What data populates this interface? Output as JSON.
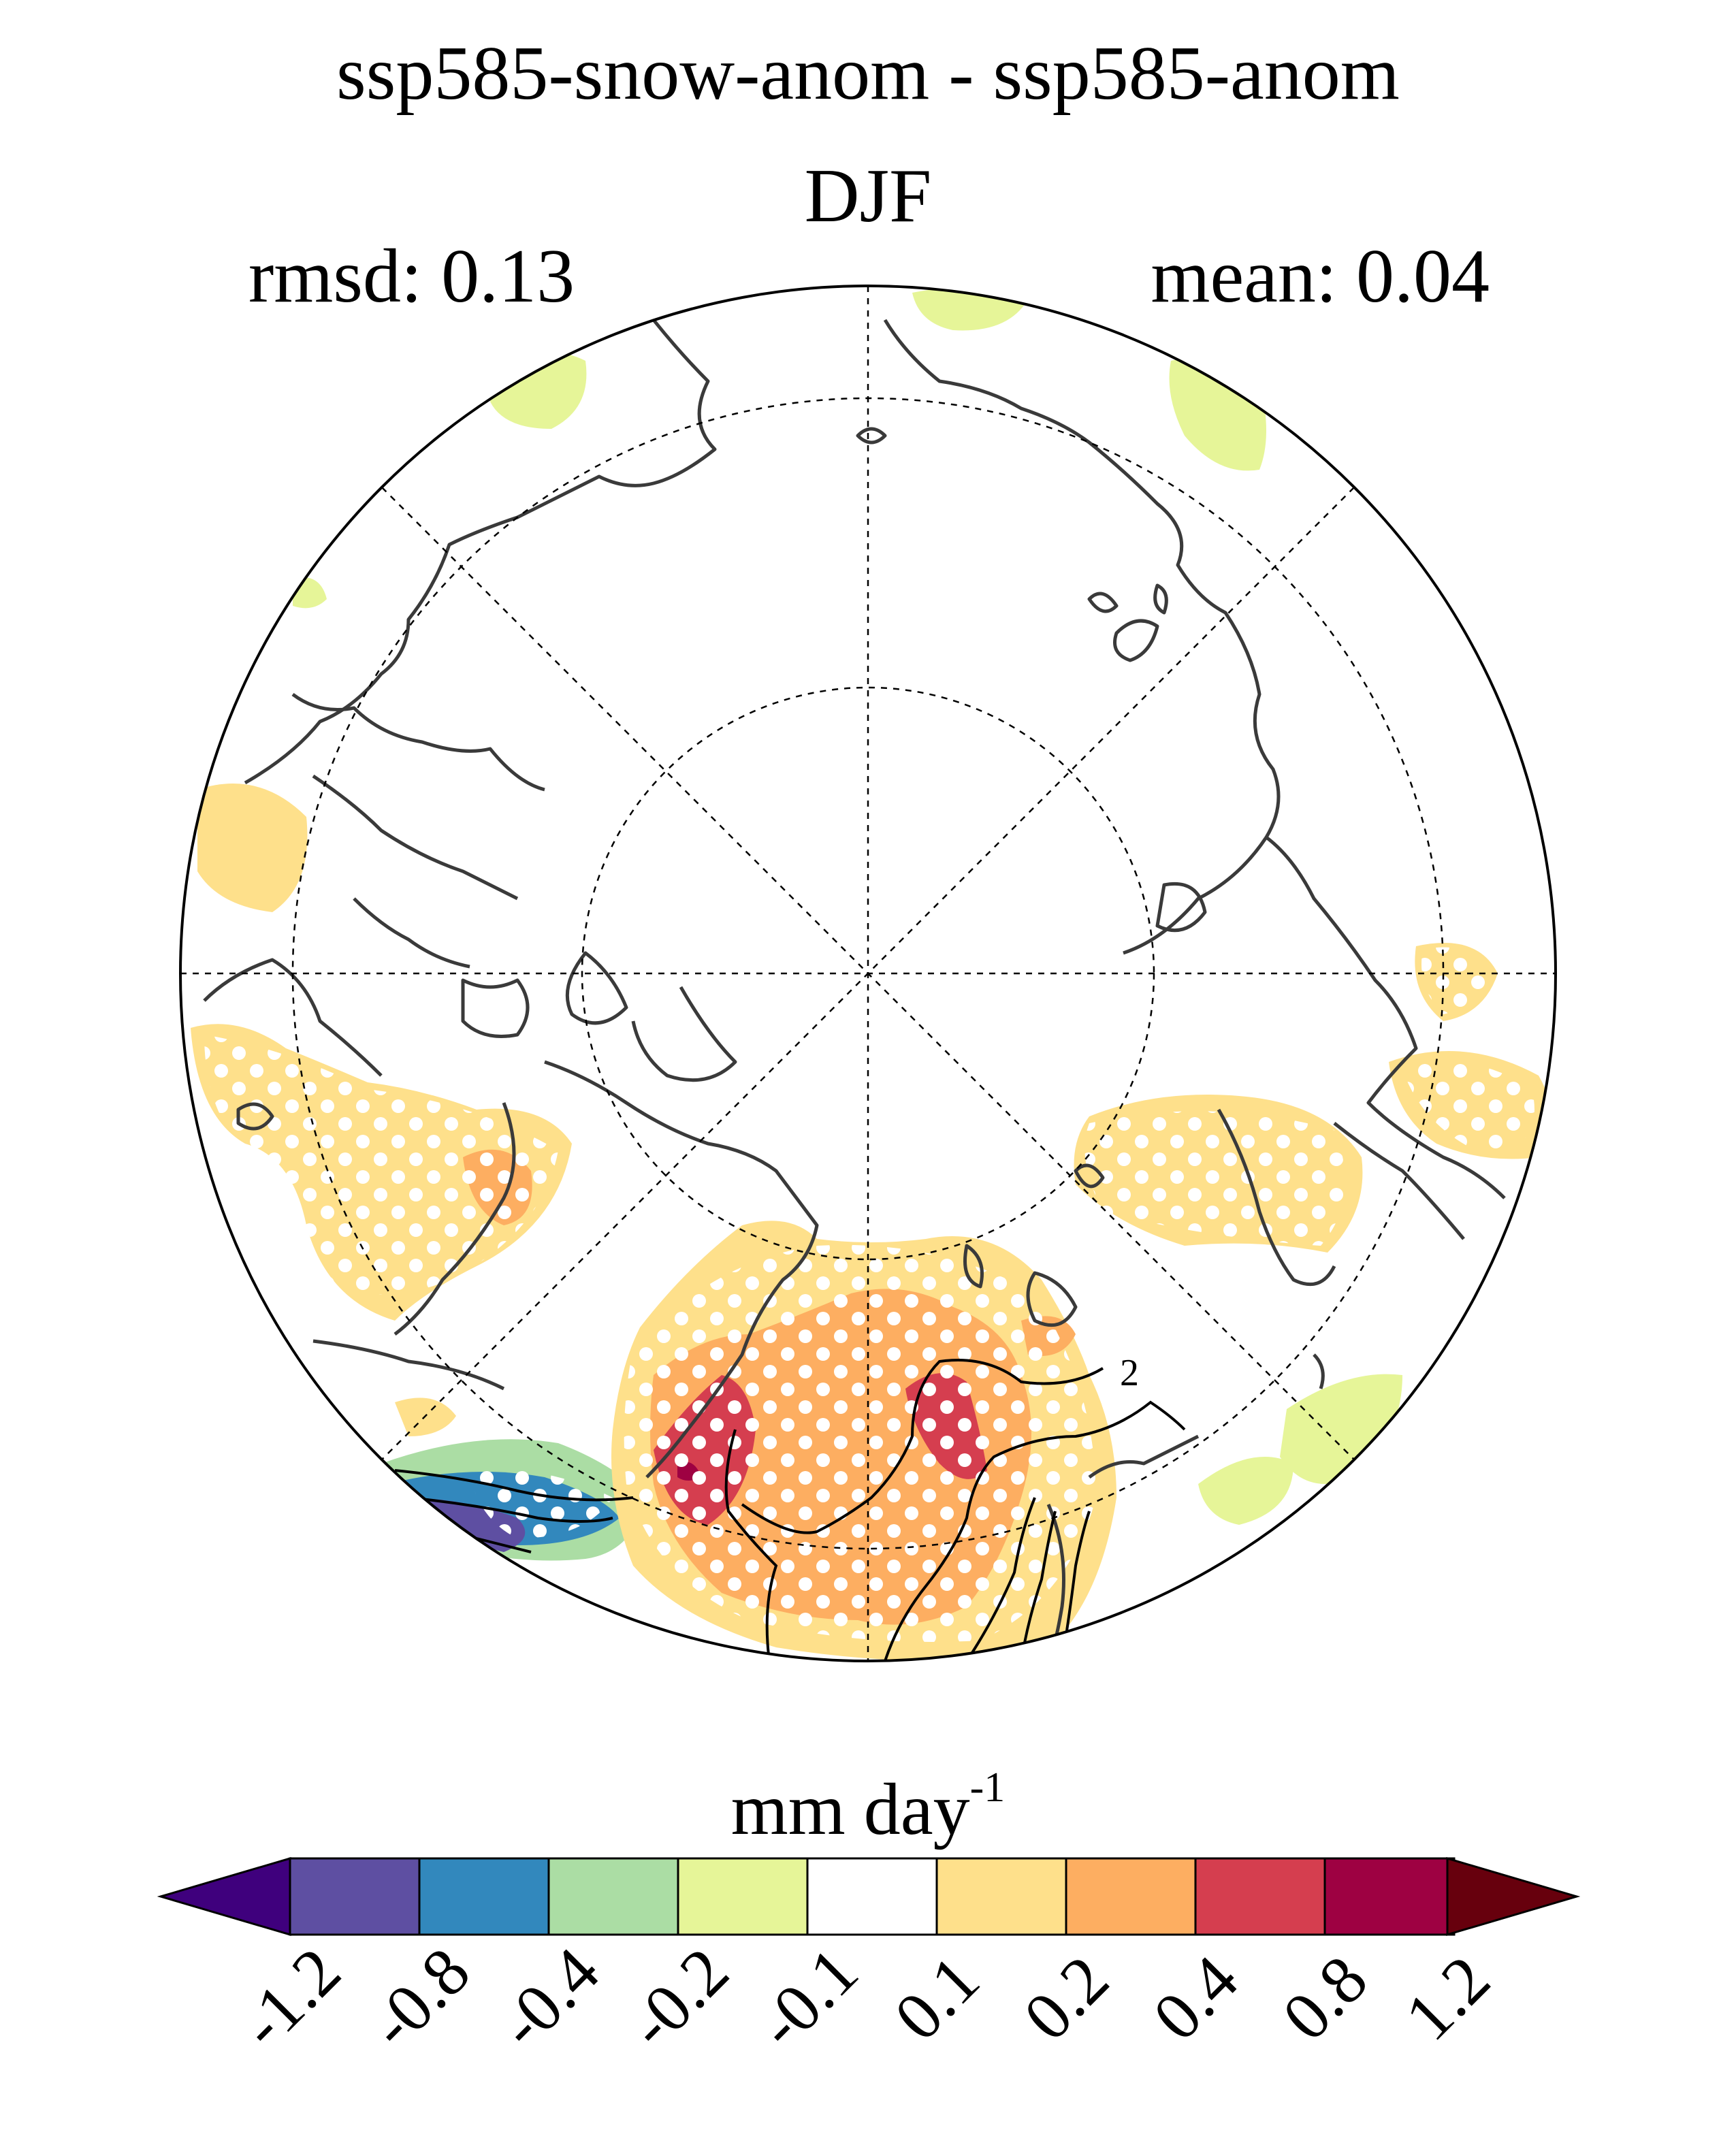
{
  "title": "ssp585-snow-anom - ssp585-anom",
  "season": "DJF",
  "stats": {
    "rmsd": "rmsd: 0.13",
    "mean": "mean: 0.04"
  },
  "colorbar": {
    "unit": "mm day",
    "unit_exponent": "-1",
    "ticks": [
      "-1.2",
      "-0.8",
      "-0.4",
      "-0.2",
      "-0.1",
      "0.1",
      "0.2",
      "0.4",
      "0.8",
      "1.2"
    ],
    "colors": [
      "#3f007d",
      "#5e4fa2",
      "#3288bd",
      "#abdda4",
      "#e6f598",
      "#ffffff",
      "#fee08b",
      "#fdae61",
      "#d53e4f",
      "#9e0142",
      "#67000d"
    ]
  },
  "map": {
    "projection": "north polar stereographic",
    "contour_label": "2",
    "stippling": "white dots mark significant areas"
  }
}
